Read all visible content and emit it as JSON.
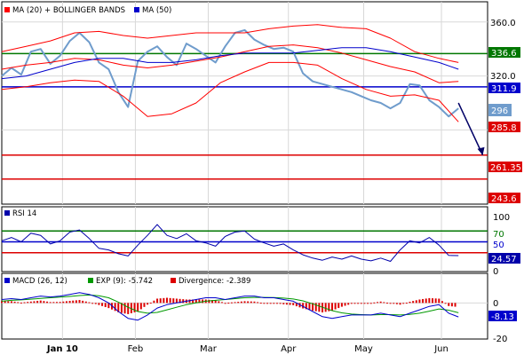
{
  "colors": {
    "price": "#6f9ccc",
    "ma20": "#ff0000",
    "bands": "#ff0000",
    "ma50": "#0000cc",
    "hline_green": "#007700",
    "hline_blue": "#0000cc",
    "hline_red": "#dd0000",
    "rsi": "#0000aa",
    "macd": "#0000cc",
    "exp": "#009900",
    "divergence": "#dd0000",
    "grid": "#d8d8d8"
  },
  "chart_data": [
    {
      "type": "line",
      "panel": "price",
      "legend": [
        {
          "label": "MA (20) + BOLLINGER BANDS",
          "color": "#ff0000",
          "icon": "red-square-icon"
        },
        {
          "label": "MA (50)",
          "color": "#0000cc",
          "icon": "blue-square-icon"
        }
      ],
      "ylim": [
        225,
        375
      ],
      "yticks": [
        "360.0",
        "320.0"
      ],
      "xlim": [
        0,
        100
      ],
      "series": [
        {
          "role": "price",
          "x": [
            0,
            2,
            4,
            6,
            8,
            10,
            12,
            14,
            16,
            18,
            20,
            22,
            24,
            26,
            28,
            30,
            32,
            34,
            36,
            38,
            40,
            42,
            44,
            46,
            48,
            50,
            52,
            54,
            56,
            58,
            60,
            62,
            64,
            66,
            68,
            70,
            72,
            74,
            76,
            78,
            80,
            82,
            84,
            86,
            88,
            90,
            92,
            94
          ],
          "values": [
            320,
            326,
            321,
            338,
            340,
            329,
            335,
            346,
            352,
            345,
            330,
            325,
            308,
            297,
            331,
            338,
            342,
            334,
            328,
            344,
            340,
            335,
            330,
            342,
            352,
            354,
            347,
            343,
            340,
            341,
            338,
            322,
            316,
            314,
            312,
            310,
            308,
            305,
            302,
            300,
            296,
            300,
            314,
            313,
            302,
            297,
            290,
            296
          ]
        },
        {
          "role": "ma20",
          "x": [
            0,
            5,
            10,
            15,
            20,
            25,
            30,
            35,
            40,
            45,
            50,
            55,
            60,
            65,
            70,
            75,
            80,
            85,
            90,
            94
          ],
          "values": [
            325,
            328,
            330,
            333,
            332,
            328,
            326,
            328,
            331,
            334,
            338,
            342,
            343,
            341,
            337,
            332,
            327,
            323,
            315,
            316
          ]
        },
        {
          "role": "bb-upper",
          "x": [
            0,
            5,
            10,
            15,
            20,
            25,
            30,
            35,
            40,
            45,
            50,
            55,
            60,
            65,
            70,
            75,
            80,
            85,
            90,
            94
          ],
          "values": [
            338,
            342,
            346,
            352,
            353,
            350,
            348,
            350,
            352,
            352,
            352,
            355,
            357,
            358,
            356,
            355,
            348,
            338,
            333,
            330
          ]
        },
        {
          "role": "bb-lower",
          "x": [
            0,
            5,
            10,
            15,
            20,
            25,
            30,
            35,
            40,
            45,
            50,
            55,
            60,
            65,
            70,
            75,
            80,
            85,
            90,
            94
          ],
          "values": [
            310,
            312,
            315,
            317,
            316,
            305,
            290,
            292,
            300,
            315,
            323,
            330,
            330,
            328,
            318,
            310,
            305,
            306,
            302,
            286
          ]
        },
        {
          "role": "ma50",
          "x": [
            0,
            5,
            10,
            15,
            20,
            25,
            30,
            35,
            40,
            45,
            50,
            55,
            60,
            65,
            70,
            75,
            80,
            85,
            90,
            94
          ],
          "values": [
            318,
            320,
            325,
            330,
            333,
            333,
            330,
            330,
            332,
            335,
            337,
            337,
            337,
            339,
            341,
            341,
            338,
            334,
            330,
            325
          ]
        }
      ],
      "levels": [
        {
          "value": 336.6,
          "label": "336.6",
          "color": "#007700"
        },
        {
          "value": 311.9,
          "label": "311.9",
          "color": "#0000cc"
        },
        {
          "value": 261.35,
          "label": "261.35",
          "color": "#dd0000"
        },
        {
          "value": 243.6,
          "label": "243.6",
          "color": "#dd0000"
        }
      ],
      "last_price": {
        "value": 296,
        "label": "296"
      },
      "last_band": {
        "value": 285.8,
        "label": "285.8"
      },
      "arrow": {
        "x_from": 94,
        "y_from": 300,
        "x_to": 99,
        "y_to": 261.35
      }
    },
    {
      "type": "line",
      "panel": "rsi",
      "legend": [
        {
          "label": "RSI 14",
          "color": "#0000aa",
          "icon": "navy-square-icon"
        }
      ],
      "ylim": [
        0,
        100
      ],
      "yticks": [
        "100",
        "50",
        "0"
      ],
      "levels": [
        {
          "value": 70,
          "label": "70",
          "color": "#007700"
        },
        {
          "value": 50,
          "label": "50",
          "color": "#0000cc"
        },
        {
          "value": 30,
          "label": "30",
          "color": "#dd0000"
        }
      ],
      "last": {
        "value": 24.57,
        "label": "24.57"
      },
      "x": [
        0,
        2,
        4,
        6,
        8,
        10,
        12,
        14,
        16,
        18,
        20,
        22,
        24,
        26,
        28,
        30,
        32,
        34,
        36,
        38,
        40,
        42,
        44,
        46,
        48,
        50,
        52,
        54,
        56,
        58,
        60,
        62,
        64,
        66,
        68,
        70,
        72,
        74,
        76,
        78,
        80,
        82,
        84,
        86,
        88,
        90,
        92,
        94
      ],
      "values": [
        52,
        58,
        50,
        66,
        62,
        46,
        52,
        68,
        72,
        56,
        38,
        35,
        28,
        24,
        44,
        62,
        82,
        62,
        56,
        65,
        52,
        48,
        42,
        60,
        68,
        70,
        55,
        48,
        42,
        46,
        35,
        26,
        20,
        16,
        22,
        18,
        24,
        18,
        15,
        20,
        14,
        35,
        52,
        48,
        58,
        44,
        25,
        24.57
      ]
    },
    {
      "type": "line",
      "panel": "macd",
      "legend": [
        {
          "label": "MACD (26, 12)",
          "color": "#0000cc",
          "icon": "blue-square-icon"
        },
        {
          "label": "EXP (9): -5.742",
          "color": "#009900",
          "icon": "green-square-icon"
        },
        {
          "label": "Divergence: -2.389",
          "color": "#dd0000",
          "icon": "red-square-icon"
        }
      ],
      "ylim": [
        -20,
        10
      ],
      "yticks": [
        "0",
        "-20"
      ],
      "last": {
        "value": -8.13,
        "label": "-8.13"
      },
      "xticks": [
        {
          "label": "Jan 10",
          "x": 12.5,
          "bold": true
        },
        {
          "label": "Feb",
          "x": 27.5,
          "bold": false
        },
        {
          "label": "Mar",
          "x": 42.5,
          "bold": false
        },
        {
          "label": "Apr",
          "x": 59,
          "bold": false
        },
        {
          "label": "May",
          "x": 74.5,
          "bold": false
        },
        {
          "label": "Jun",
          "x": 90.5,
          "bold": false
        }
      ],
      "x": [
        0,
        2,
        4,
        6,
        8,
        10,
        12,
        14,
        16,
        18,
        20,
        22,
        24,
        26,
        28,
        30,
        32,
        34,
        36,
        38,
        40,
        42,
        44,
        46,
        48,
        50,
        52,
        54,
        56,
        58,
        60,
        62,
        64,
        66,
        68,
        70,
        72,
        74,
        76,
        78,
        80,
        82,
        84,
        86,
        88,
        90,
        92,
        94
      ],
      "macd": [
        2,
        2.5,
        2,
        3,
        4,
        3.5,
        4,
        5,
        6,
        5,
        3,
        0,
        -5,
        -9,
        -10,
        -7,
        -3,
        -1,
        0,
        1,
        2,
        3,
        3,
        2,
        3,
        4,
        4,
        3,
        3,
        2,
        1,
        -2,
        -5,
        -8,
        -9,
        -8,
        -7,
        -7,
        -7,
        -6,
        -7,
        -8,
        -6,
        -4,
        -2,
        -1,
        -6,
        -8.13
      ],
      "exp": [
        1,
        1.5,
        1.8,
        2.2,
        2.6,
        3,
        3.4,
        3.8,
        4.3,
        4.6,
        4.2,
        3,
        0.5,
        -2.5,
        -5,
        -6,
        -5.5,
        -4,
        -2.5,
        -1,
        0,
        1,
        1.5,
        2,
        2.5,
        3,
        3.2,
        3.2,
        3.1,
        2.8,
        2.3,
        1.2,
        -0.5,
        -2.5,
        -4.5,
        -5.8,
        -6.5,
        -6.8,
        -7,
        -6.8,
        -6.8,
        -7,
        -6.7,
        -6,
        -4.8,
        -3.5,
        -4.2,
        -5.742
      ],
      "divergence": [
        1,
        1,
        0.2,
        0.8,
        1.4,
        0.5,
        0.6,
        1.2,
        1.7,
        0.4,
        -1.2,
        -3,
        -5.5,
        -6.5,
        -5,
        -1,
        2.5,
        3,
        2.5,
        2,
        2,
        2,
        1.5,
        0,
        0.5,
        1,
        0.8,
        -0.2,
        -0.1,
        -0.8,
        -1.3,
        -3.2,
        -4.5,
        -5.5,
        -4.5,
        -2.2,
        -0.5,
        -0.2,
        0,
        0.8,
        -0.2,
        -1,
        0.7,
        2,
        2.8,
        2.5,
        -1.8,
        -2.389
      ]
    }
  ]
}
